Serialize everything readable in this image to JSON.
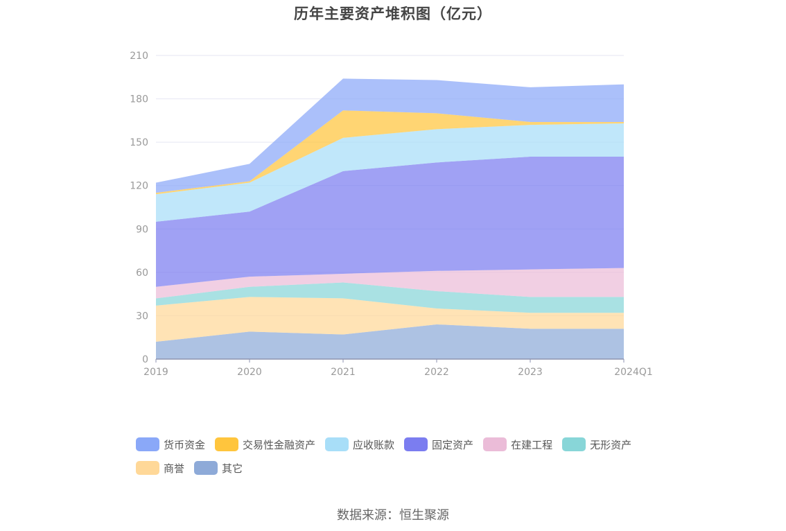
{
  "title": "历年主要资产堆积图（亿元）",
  "source": "数据来源：恒生聚源",
  "chart_data": {
    "type": "area",
    "stacked": true,
    "title": "历年主要资产堆积图（亿元）",
    "categories": [
      "2019",
      "2020",
      "2021",
      "2022",
      "2023",
      "2024Q1"
    ],
    "ylim": [
      0,
      210
    ],
    "yticks": [
      0,
      30,
      60,
      90,
      120,
      150,
      180,
      210
    ],
    "grid": true,
    "legend_position": "bottom",
    "series": [
      {
        "name": "其它",
        "color": "#8eaad8",
        "values": [
          12,
          19,
          17,
          24,
          21,
          21
        ]
      },
      {
        "name": "商誉",
        "color": "#ffd898",
        "values": [
          25,
          24,
          25,
          11,
          11,
          11
        ]
      },
      {
        "name": "无形资产",
        "color": "#88d6d8",
        "values": [
          5,
          7,
          11,
          12,
          11,
          11
        ]
      },
      {
        "name": "在建工程",
        "color": "#ebbcd8",
        "values": [
          8,
          7,
          6,
          14,
          19,
          20
        ]
      },
      {
        "name": "固定资产",
        "color": "#7b7df0",
        "values": [
          45,
          45,
          71,
          75,
          78,
          77
        ]
      },
      {
        "name": "应收账款",
        "color": "#a8def8",
        "values": [
          19,
          20,
          23,
          23,
          22,
          23
        ]
      },
      {
        "name": "交易性金融资产",
        "color": "#ffc53d",
        "values": [
          1,
          1,
          19,
          11,
          2,
          1
        ]
      },
      {
        "name": "货币资金",
        "color": "#8aa8f8",
        "values": [
          7,
          12,
          22,
          23,
          24,
          26
        ]
      }
    ]
  },
  "legend_order": [
    "货币资金",
    "交易性金融资产",
    "应收账款",
    "固定资产",
    "在建工程",
    "无形资产",
    "商誉",
    "其它"
  ]
}
